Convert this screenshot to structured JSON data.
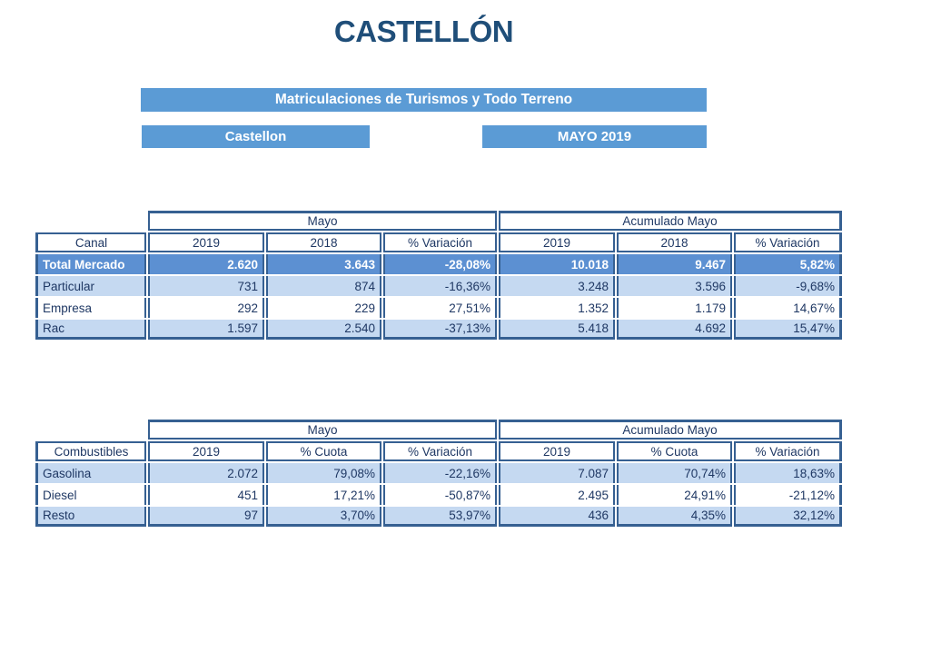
{
  "page": {
    "title": "CASTELLÓN",
    "banner": "Matriculaciones de Turismos y Todo Terreno",
    "region": "Castellon",
    "period": "MAYO 2019"
  },
  "colors": {
    "accent": "#5B9BD5",
    "highlight_row": "#5C90D2",
    "border": "#366092",
    "light_row": "#C5D9F1",
    "text": "#1F3864",
    "title": "#1F4E79"
  },
  "tables": {
    "canal": {
      "group_headers": [
        "Mayo",
        "Acumulado Mayo"
      ],
      "columns": [
        "Canal",
        "2019",
        "2018",
        "% Variación",
        "2019",
        "2018",
        "% Variación"
      ],
      "rows": [
        {
          "label": "Total Mercado",
          "values": [
            "2.620",
            "3.643",
            "-28,08%",
            "10.018",
            "9.467",
            "5,82%"
          ],
          "highlight": true
        },
        {
          "label": "Particular",
          "values": [
            "731",
            "874",
            "-16,36%",
            "3.248",
            "3.596",
            "-9,68%"
          ],
          "highlight": false
        },
        {
          "label": "Empresa",
          "values": [
            "292",
            "229",
            "27,51%",
            "1.352",
            "1.179",
            "14,67%"
          ],
          "highlight": false
        },
        {
          "label": "Rac",
          "values": [
            "1.597",
            "2.540",
            "-37,13%",
            "5.418",
            "4.692",
            "15,47%"
          ],
          "highlight": false
        }
      ]
    },
    "combustibles": {
      "group_headers": [
        "Mayo",
        "Acumulado Mayo"
      ],
      "columns": [
        "Combustibles",
        "2019",
        "% Cuota",
        "% Variación",
        "2019",
        "% Cuota",
        "% Variación"
      ],
      "rows": [
        {
          "label": "Gasolina",
          "values": [
            "2.072",
            "79,08%",
            "-22,16%",
            "7.087",
            "70,74%",
            "18,63%"
          ],
          "highlight": false
        },
        {
          "label": "Diesel",
          "values": [
            "451",
            "17,21%",
            "-50,87%",
            "2.495",
            "24,91%",
            "-21,12%"
          ],
          "highlight": false
        },
        {
          "label": "Resto",
          "values": [
            "97",
            "3,70%",
            "53,97%",
            "436",
            "4,35%",
            "32,12%"
          ],
          "highlight": false
        }
      ]
    }
  }
}
